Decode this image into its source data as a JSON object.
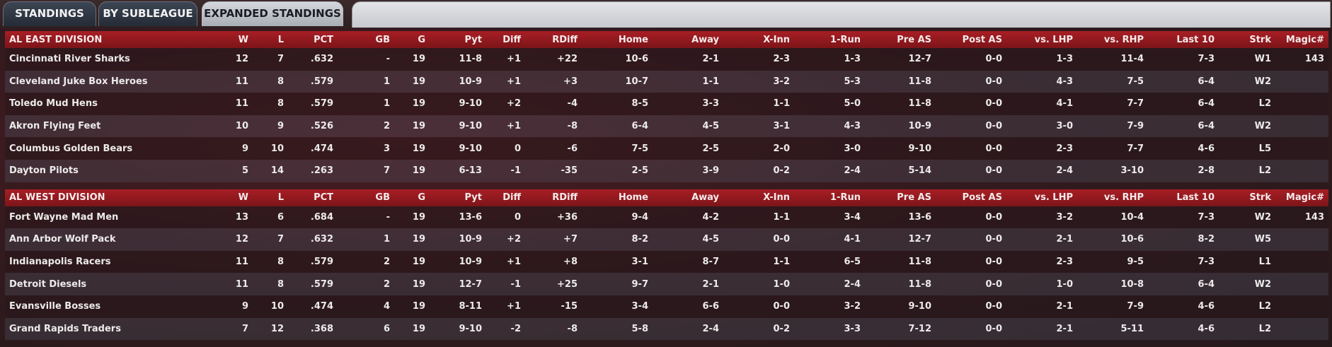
{
  "tabs": [
    {
      "label": "STANDINGS",
      "active": false
    },
    {
      "label": "BY SUBLEAGUE",
      "active": false
    },
    {
      "label": "EXPANDED STANDINGS",
      "active": true
    }
  ],
  "columns": [
    "W",
    "L",
    "PCT",
    "GB",
    "G",
    "Pyt",
    "Diff",
    "RDiff",
    "Home",
    "Away",
    "X-Inn",
    "1-Run",
    "Pre AS",
    "Post AS",
    "vs. LHP",
    "vs. RHP",
    "Last 10",
    "Strk",
    "Magic#"
  ],
  "divisions": [
    {
      "name": "AL EAST DIVISION",
      "teams": [
        [
          "Cincinnati River Sharks",
          "12",
          "7",
          ".632",
          "-",
          "19",
          "11-8",
          "+1",
          "+22",
          "10-6",
          "2-1",
          "2-3",
          "1-3",
          "12-7",
          "0-0",
          "1-3",
          "11-4",
          "7-3",
          "W1",
          "143"
        ],
        [
          "Cleveland Juke Box Heroes",
          "11",
          "8",
          ".579",
          "1",
          "19",
          "10-9",
          "+1",
          "+3",
          "10-7",
          "1-1",
          "3-2",
          "5-3",
          "11-8",
          "0-0",
          "4-3",
          "7-5",
          "6-4",
          "W2",
          ""
        ],
        [
          "Toledo  Mud Hens",
          "11",
          "8",
          ".579",
          "1",
          "19",
          "9-10",
          "+2",
          "-4",
          "8-5",
          "3-3",
          "1-1",
          "5-0",
          "11-8",
          "0-0",
          "4-1",
          "7-7",
          "6-4",
          "L2",
          ""
        ],
        [
          "Akron  Flying Feet",
          "10",
          "9",
          ".526",
          "2",
          "19",
          "9-10",
          "+1",
          "-8",
          "6-4",
          "4-5",
          "3-1",
          "4-3",
          "10-9",
          "0-0",
          "3-0",
          "7-9",
          "6-4",
          "W2",
          ""
        ],
        [
          "Columbus Golden Bears",
          "9",
          "10",
          ".474",
          "3",
          "19",
          "9-10",
          "0",
          "-6",
          "7-5",
          "2-5",
          "2-0",
          "3-0",
          "9-10",
          "0-0",
          "2-3",
          "7-7",
          "4-6",
          "L5",
          ""
        ],
        [
          "Dayton Pilots",
          "5",
          "14",
          ".263",
          "7",
          "19",
          "6-13",
          "-1",
          "-35",
          "2-5",
          "3-9",
          "0-2",
          "2-4",
          "5-14",
          "0-0",
          "2-4",
          "3-10",
          "2-8",
          "L2",
          ""
        ]
      ]
    },
    {
      "name": "AL WEST DIVISION",
      "teams": [
        [
          "Fort Wayne Mad Men",
          "13",
          "6",
          ".684",
          "-",
          "19",
          "13-6",
          "0",
          "+36",
          "9-4",
          "4-2",
          "1-1",
          "3-4",
          "13-6",
          "0-0",
          "3-2",
          "10-4",
          "7-3",
          "W2",
          "143"
        ],
        [
          "Ann Arbor Wolf Pack",
          "12",
          "7",
          ".632",
          "1",
          "19",
          "10-9",
          "+2",
          "+7",
          "8-2",
          "4-5",
          "0-0",
          "4-1",
          "12-7",
          "0-0",
          "2-1",
          "10-6",
          "8-2",
          "W5",
          ""
        ],
        [
          "Indianapolis Racers",
          "11",
          "8",
          ".579",
          "2",
          "19",
          "10-9",
          "+1",
          "+8",
          "3-1",
          "8-7",
          "1-1",
          "6-5",
          "11-8",
          "0-0",
          "2-3",
          "9-5",
          "7-3",
          "L1",
          ""
        ],
        [
          "Detroit Diesels",
          "11",
          "8",
          ".579",
          "2",
          "19",
          "12-7",
          "-1",
          "+25",
          "9-7",
          "2-1",
          "1-0",
          "2-4",
          "11-8",
          "0-0",
          "1-0",
          "10-8",
          "6-4",
          "W2",
          ""
        ],
        [
          "Evansville Bosses",
          "9",
          "10",
          ".474",
          "4",
          "19",
          "8-11",
          "+1",
          "-15",
          "3-4",
          "6-6",
          "0-0",
          "3-2",
          "9-10",
          "0-0",
          "2-1",
          "7-9",
          "4-6",
          "L2",
          ""
        ],
        [
          "Grand Rapids Traders",
          "7",
          "12",
          ".368",
          "6",
          "19",
          "9-10",
          "-2",
          "-8",
          "5-8",
          "2-4",
          "0-2",
          "3-3",
          "7-12",
          "0-0",
          "2-1",
          "5-11",
          "4-6",
          "L2",
          ""
        ]
      ]
    }
  ]
}
